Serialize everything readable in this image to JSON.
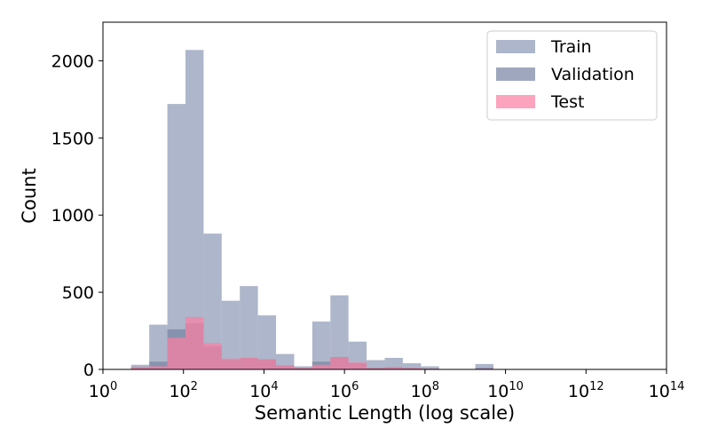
{
  "chart_data": {
    "type": "bar",
    "xlabel": "Semantic Length (log scale)",
    "ylabel": "Count",
    "xscale": "log",
    "xlim": [
      1,
      100000000000000
    ],
    "ylim": [
      0,
      2250
    ],
    "x_ticks": [
      {
        "value": 1,
        "base": "10",
        "exp": "0"
      },
      {
        "value": 100,
        "base": "10",
        "exp": "2"
      },
      {
        "value": 10000,
        "base": "10",
        "exp": "4"
      },
      {
        "value": 1000000,
        "base": "10",
        "exp": "6"
      },
      {
        "value": 100000000,
        "base": "10",
        "exp": "8"
      },
      {
        "value": 10000000000,
        "base": "10",
        "exp": "10"
      },
      {
        "value": 1000000000000,
        "base": "10",
        "exp": "12"
      },
      {
        "value": 100000000000000,
        "base": "10",
        "exp": "14"
      }
    ],
    "y_ticks": [
      {
        "value": 0,
        "label": "0"
      },
      {
        "value": 500,
        "label": "500"
      },
      {
        "value": 1000,
        "label": "1000"
      },
      {
        "value": 1500,
        "label": "1500"
      },
      {
        "value": 2000,
        "label": "2000"
      }
    ],
    "legend_position": "top-right",
    "bin_edges_log10": [
      0.7,
      1.15,
      1.6,
      2.05,
      2.5,
      2.95,
      3.4,
      3.85,
      4.3,
      4.75,
      5.2,
      5.65,
      6.1,
      6.55,
      7.0,
      7.45,
      7.9,
      8.35,
      8.8,
      9.25,
      9.7
    ],
    "series": [
      {
        "name": "Train",
        "color": "#8e9ab5",
        "opacity": 0.72,
        "values": [
          30,
          290,
          1720,
          2070,
          880,
          445,
          540,
          350,
          100,
          20,
          310,
          480,
          180,
          60,
          75,
          40,
          20,
          0,
          0,
          35
        ]
      },
      {
        "name": "Validation",
        "color": "#7885a4",
        "opacity": 0.72,
        "values": [
          15,
          50,
          260,
          300,
          150,
          65,
          75,
          65,
          25,
          10,
          50,
          80,
          40,
          10,
          15,
          10,
          5,
          0,
          0,
          10
        ]
      },
      {
        "name": "Test",
        "color": "#fb7fa3",
        "opacity": 0.72,
        "values": [
          15,
          20,
          205,
          340,
          170,
          70,
          75,
          65,
          25,
          10,
          30,
          80,
          45,
          10,
          15,
          10,
          5,
          0,
          0,
          5
        ]
      }
    ]
  }
}
